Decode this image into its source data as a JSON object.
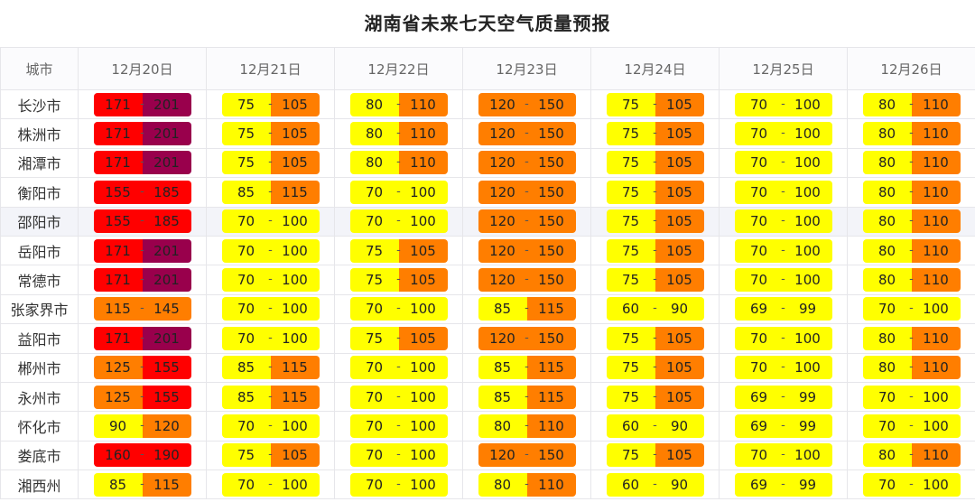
{
  "title": "湖南省未来七天空气质量预报",
  "header": {
    "city_label": "城市",
    "dates": [
      "12月20日",
      "12月21日",
      "12月22日",
      "12月23日",
      "12月24日",
      "12月25日",
      "12月26日"
    ]
  },
  "colors": {
    "yellow": "#ffff00",
    "orange": "#ff7e00",
    "red": "#ff0000",
    "purple": "#99004c"
  },
  "rows": [
    {
      "city": "长沙市",
      "values": [
        [
          171,
          201
        ],
        [
          75,
          105
        ],
        [
          80,
          110
        ],
        [
          120,
          150
        ],
        [
          75,
          105
        ],
        [
          70,
          100
        ],
        [
          80,
          110
        ]
      ]
    },
    {
      "city": "株洲市",
      "values": [
        [
          171,
          201
        ],
        [
          75,
          105
        ],
        [
          80,
          110
        ],
        [
          120,
          150
        ],
        [
          75,
          105
        ],
        [
          70,
          100
        ],
        [
          80,
          110
        ]
      ]
    },
    {
      "city": "湘潭市",
      "values": [
        [
          171,
          201
        ],
        [
          75,
          105
        ],
        [
          80,
          110
        ],
        [
          120,
          150
        ],
        [
          75,
          105
        ],
        [
          70,
          100
        ],
        [
          80,
          110
        ]
      ]
    },
    {
      "city": "衡阳市",
      "values": [
        [
          155,
          185
        ],
        [
          85,
          115
        ],
        [
          70,
          100
        ],
        [
          120,
          150
        ],
        [
          75,
          105
        ],
        [
          70,
          100
        ],
        [
          80,
          110
        ]
      ]
    },
    {
      "city": "邵阳市",
      "values": [
        [
          155,
          185
        ],
        [
          70,
          100
        ],
        [
          70,
          100
        ],
        [
          120,
          150
        ],
        [
          75,
          105
        ],
        [
          70,
          100
        ],
        [
          80,
          110
        ]
      ]
    },
    {
      "city": "岳阳市",
      "values": [
        [
          171,
          201
        ],
        [
          70,
          100
        ],
        [
          75,
          105
        ],
        [
          120,
          150
        ],
        [
          75,
          105
        ],
        [
          70,
          100
        ],
        [
          80,
          110
        ]
      ]
    },
    {
      "city": "常德市",
      "values": [
        [
          171,
          201
        ],
        [
          70,
          100
        ],
        [
          75,
          105
        ],
        [
          120,
          150
        ],
        [
          75,
          105
        ],
        [
          70,
          100
        ],
        [
          80,
          110
        ]
      ]
    },
    {
      "city": "张家界市",
      "values": [
        [
          115,
          145
        ],
        [
          70,
          100
        ],
        [
          70,
          100
        ],
        [
          85,
          115
        ],
        [
          60,
          90
        ],
        [
          69,
          99
        ],
        [
          70,
          100
        ]
      ]
    },
    {
      "city": "益阳市",
      "values": [
        [
          171,
          201
        ],
        [
          70,
          100
        ],
        [
          75,
          105
        ],
        [
          120,
          150
        ],
        [
          75,
          105
        ],
        [
          70,
          100
        ],
        [
          80,
          110
        ]
      ]
    },
    {
      "city": "郴州市",
      "values": [
        [
          125,
          155
        ],
        [
          85,
          115
        ],
        [
          70,
          100
        ],
        [
          85,
          115
        ],
        [
          75,
          105
        ],
        [
          70,
          100
        ],
        [
          80,
          110
        ]
      ]
    },
    {
      "city": "永州市",
      "values": [
        [
          125,
          155
        ],
        [
          85,
          115
        ],
        [
          70,
          100
        ],
        [
          85,
          115
        ],
        [
          75,
          105
        ],
        [
          69,
          99
        ],
        [
          70,
          100
        ]
      ]
    },
    {
      "city": "怀化市",
      "values": [
        [
          90,
          120
        ],
        [
          70,
          100
        ],
        [
          70,
          100
        ],
        [
          80,
          110
        ],
        [
          60,
          90
        ],
        [
          69,
          99
        ],
        [
          70,
          100
        ]
      ]
    },
    {
      "city": "娄底市",
      "values": [
        [
          160,
          190
        ],
        [
          75,
          105
        ],
        [
          70,
          100
        ],
        [
          120,
          150
        ],
        [
          75,
          105
        ],
        [
          70,
          100
        ],
        [
          80,
          110
        ]
      ]
    },
    {
      "city": "湘西州",
      "values": [
        [
          85,
          115
        ],
        [
          70,
          100
        ],
        [
          70,
          100
        ],
        [
          80,
          110
        ],
        [
          60,
          90
        ],
        [
          69,
          99
        ],
        [
          70,
          100
        ]
      ]
    }
  ],
  "highlighted_row": 4
}
